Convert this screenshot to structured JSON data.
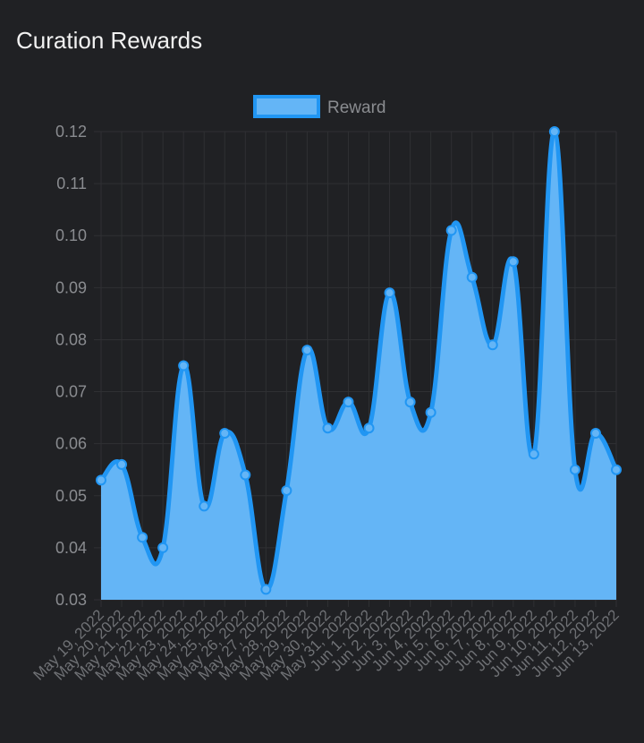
{
  "title": "Curation Rewards",
  "chart_data": {
    "type": "area",
    "title": "Curation Rewards",
    "xlabel": "",
    "ylabel": "",
    "ylim": [
      0.03,
      0.12
    ],
    "yticks": [
      "0.12",
      "0.11",
      "0.10",
      "0.09",
      "0.08",
      "0.07",
      "0.06",
      "0.05",
      "0.04",
      "0.03"
    ],
    "grid": true,
    "legend_position": "top-center",
    "categories": [
      "May 19, 2022",
      "May 20, 2022",
      "May 21, 2022",
      "May 22, 2022",
      "May 23, 2022",
      "May 24, 2022",
      "May 25, 2022",
      "May 26, 2022",
      "May 27, 2022",
      "May 28, 2022",
      "May 29, 2022",
      "May 30, 2022",
      "May 31, 2022",
      "Jun 1, 2022",
      "Jun 2, 2022",
      "Jun 3, 2022",
      "Jun 4, 2022",
      "Jun 5, 2022",
      "Jun 6, 2022",
      "Jun 7, 2022",
      "Jun 8, 2022",
      "Jun 9, 2022",
      "Jun 10, 2022",
      "Jun 11, 2022",
      "Jun 12, 2022",
      "Jun 13, 2022"
    ],
    "series": [
      {
        "name": "Reward",
        "values": [
          0.053,
          0.056,
          0.042,
          0.04,
          0.075,
          0.048,
          0.062,
          0.054,
          0.032,
          0.051,
          0.078,
          0.063,
          0.068,
          0.063,
          0.089,
          0.068,
          0.066,
          0.101,
          0.092,
          0.079,
          0.095,
          0.058,
          0.12,
          0.055,
          0.062,
          0.055
        ]
      }
    ],
    "colors": {
      "line": "#2196f3",
      "fill": "#64b5f6",
      "grid": "#2f3033"
    }
  }
}
